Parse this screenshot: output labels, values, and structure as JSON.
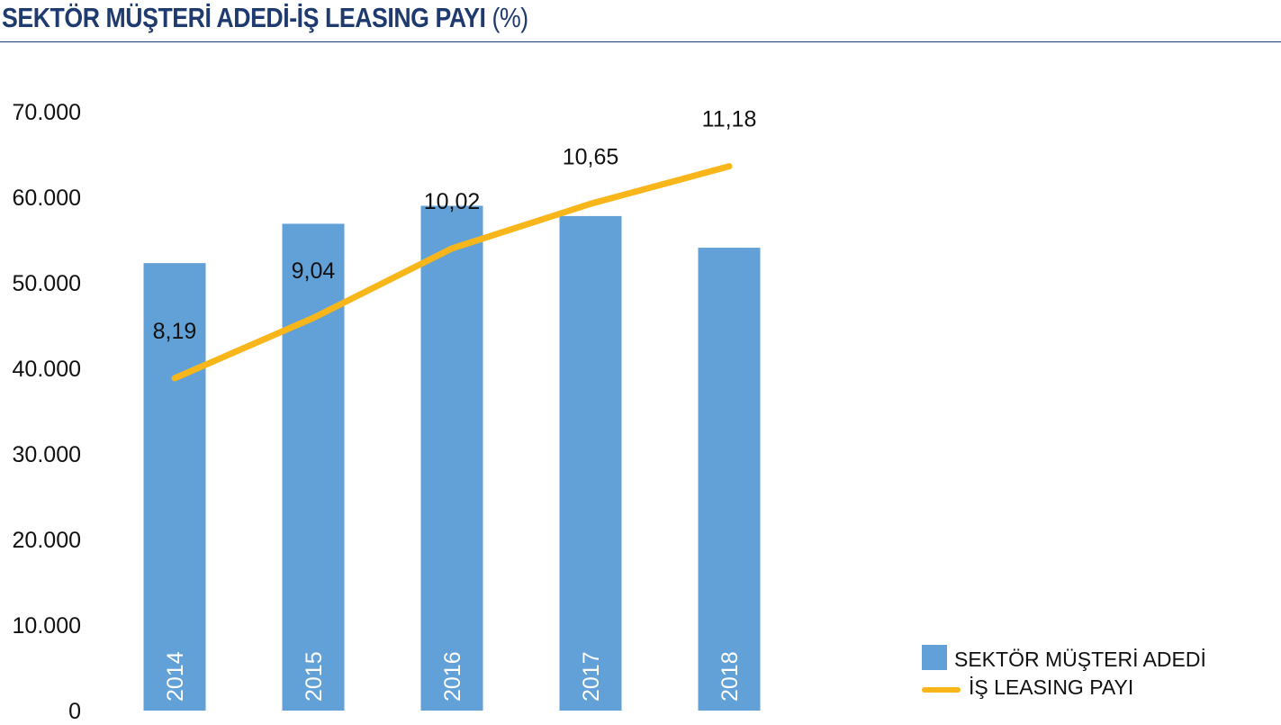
{
  "title": "SEKTÖR MÜŞTERİ ADEDİ-İŞ LEASING PAYI",
  "title_unit": "(%)",
  "colors": {
    "bar": "#62a1d7",
    "line": "#f8b61a",
    "title": "#1f3a6e",
    "text": "#111111",
    "bar_label": "#ffffff"
  },
  "chart_data": {
    "type": "bar",
    "categories": [
      "2014",
      "2015",
      "2016",
      "2017",
      "2018"
    ],
    "series": [
      {
        "name": "SEKTÖR MÜŞTERİ ADEDİ",
        "type": "bar",
        "axis": "left",
        "values": [
          52300,
          56900,
          59000,
          57800,
          54100
        ]
      },
      {
        "name": "İŞ LEASING PAYI",
        "type": "line",
        "axis": "right-hidden",
        "values": [
          8.19,
          9.04,
          10.02,
          10.65,
          11.18
        ],
        "labels": [
          "8,19",
          "9,04",
          "10,02",
          "10,65",
          "11,18"
        ]
      }
    ],
    "y_ticks": [
      "0",
      "10.000",
      "20.000",
      "30.000",
      "40.000",
      "50.000",
      "60.000",
      "70.000"
    ],
    "ylim": [
      0,
      70000
    ],
    "y2lim": [
      3.5,
      11.95
    ],
    "grid": false,
    "legend": "bottom-right",
    "category_label_position": "inside-bar-vertical"
  }
}
